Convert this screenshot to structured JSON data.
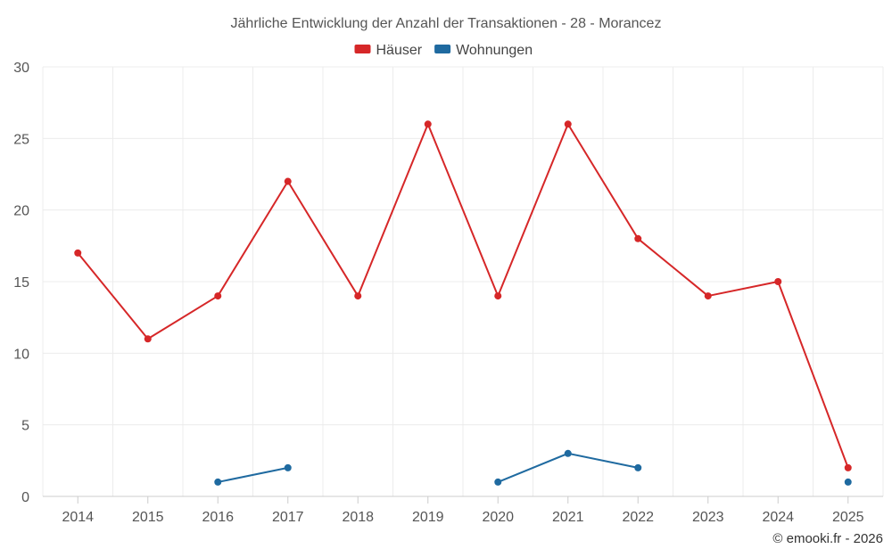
{
  "chart_data": {
    "type": "line",
    "title": "Jährliche Entwicklung der Anzahl der Transaktionen - 28 - Morancez",
    "categories": [
      "2014",
      "2015",
      "2016",
      "2017",
      "2018",
      "2019",
      "2020",
      "2021",
      "2022",
      "2023",
      "2024",
      "2025"
    ],
    "ylim": [
      0,
      30
    ],
    "yticks": [
      0,
      5,
      10,
      15,
      20,
      25,
      30
    ],
    "grid": true,
    "legend_position": "top-center",
    "series": [
      {
        "name": "Häuser",
        "color": "#d62728",
        "values": [
          17,
          11,
          14,
          22,
          14,
          26,
          14,
          26,
          18,
          14,
          15,
          2
        ]
      },
      {
        "name": "Wohnungen",
        "color": "#1f6aa0",
        "values": [
          null,
          null,
          1,
          2,
          null,
          null,
          1,
          3,
          2,
          null,
          null,
          1
        ]
      }
    ],
    "credit": "© emooki.fr - 2026"
  }
}
